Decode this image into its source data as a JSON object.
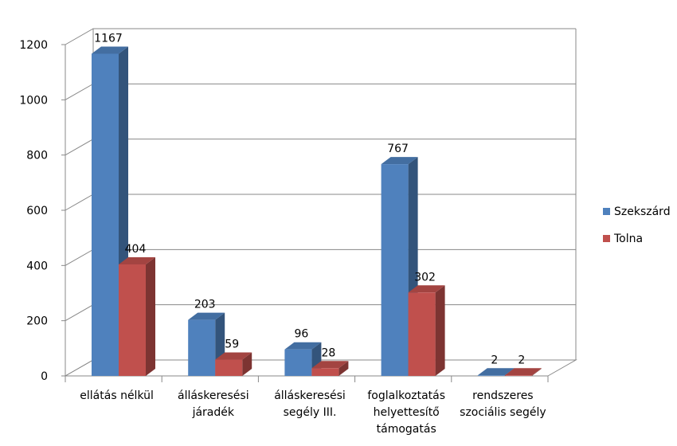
{
  "chart_data": {
    "type": "bar",
    "title": "",
    "xlabel": "",
    "ylabel": "",
    "categories": [
      [
        "ellátás nélkül"
      ],
      [
        "álláskeresési",
        "járadék"
      ],
      [
        "álláskeresési",
        "segély III."
      ],
      [
        "foglalkoztatás",
        "helyettesítő",
        "támogatás"
      ],
      [
        "rendszeres",
        "szociális segély"
      ]
    ],
    "series": [
      {
        "name": "Szekszárd",
        "color": "#4F81BD",
        "values": [
          1167,
          203,
          96,
          767,
          2
        ]
      },
      {
        "name": "Tolna",
        "color": "#C0504D",
        "values": [
          404,
          59,
          28,
          302,
          2
        ]
      }
    ],
    "ylim": [
      0,
      1200
    ],
    "yticks": [
      0,
      200,
      400,
      600,
      800,
      1000,
      1200
    ],
    "grid": true,
    "legend": "right",
    "style": "3d-clustered-column"
  }
}
